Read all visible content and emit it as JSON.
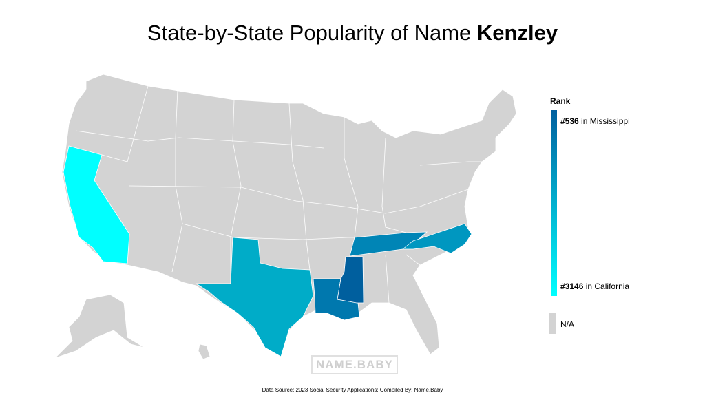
{
  "title": {
    "prefix": "State-by-State Popularity of Name",
    "name": "Kenzley"
  },
  "legend": {
    "heading": "Rank",
    "top": {
      "rank": "#536",
      "text": "in Mississippi"
    },
    "bottom": {
      "rank": "#3146",
      "text": "in California"
    },
    "na": "N/A",
    "top_color": "#005f9e",
    "bottom_color": "#00ffff",
    "na_color": "#d3d3d3"
  },
  "highlight_colors": [
    "#00ffff",
    "#00acc8",
    "#0078ae",
    "#005f9e",
    "#0085b6",
    "#0097c0"
  ],
  "watermark": "NAME.BABY",
  "source": "Data Source: 2023 Social Security Applications; Compiled By: Name.Baby"
}
